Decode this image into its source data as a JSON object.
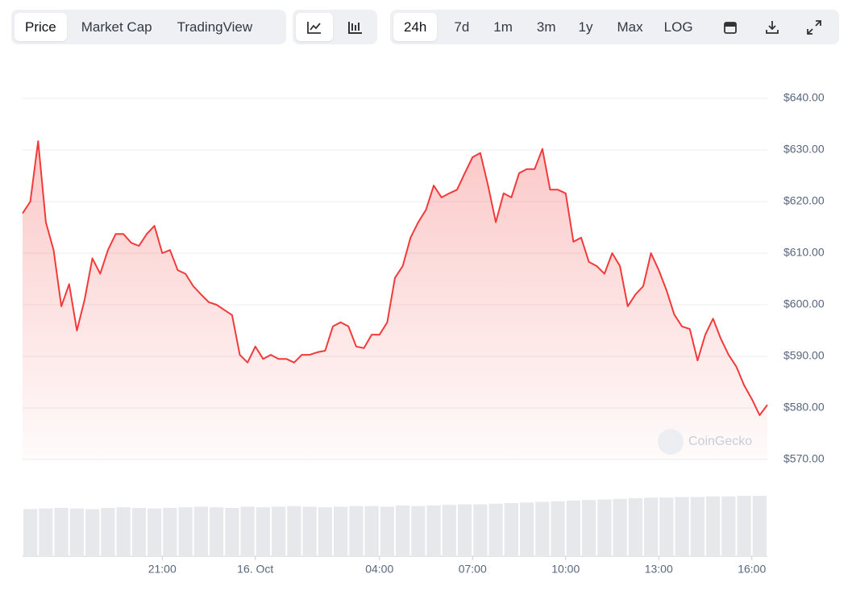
{
  "toolbar": {
    "views": [
      "Price",
      "Market Cap",
      "TradingView"
    ],
    "ranges": [
      "24h",
      "7d",
      "1m",
      "3m",
      "1y",
      "Max",
      "LOG"
    ]
  },
  "watermark": "CoinGecko",
  "chart_data": {
    "type": "line",
    "x": [
      16.5,
      16.75,
      17,
      17.25,
      17.5,
      17.75,
      18,
      18.25,
      18.5,
      18.75,
      19,
      19.25,
      19.5,
      19.75,
      20,
      20.25,
      20.5,
      20.75,
      21,
      21.25,
      21.5,
      21.75,
      22,
      22.25,
      22.5,
      22.75,
      23,
      23.25,
      23.5,
      23.75,
      24,
      24.25,
      24.5,
      24.75,
      25,
      25.25,
      25.5,
      25.75,
      26,
      26.25,
      26.5,
      26.75,
      27,
      27.25,
      27.5,
      27.75,
      28,
      28.25,
      28.5,
      28.75,
      29,
      29.25,
      29.5,
      29.75,
      30,
      30.25,
      30.5,
      30.75,
      31,
      31.25,
      31.5,
      31.75,
      32,
      32.25,
      32.5,
      32.75,
      33,
      33.25,
      33.5,
      33.75,
      34,
      34.25,
      34.5,
      34.75,
      35,
      35.25,
      35.5,
      35.75,
      36,
      36.25,
      36.5,
      36.75,
      37,
      37.25,
      37.5,
      37.75,
      38,
      38.25,
      38.5,
      38.75,
      39,
      39.25,
      39.5,
      39.75,
      40,
      40.25,
      40.5
    ],
    "series": [
      {
        "color": "#f23a3a",
        "values": [
          617.7,
          620,
          631.7,
          616,
          610.6,
          599.7,
          604,
          595,
          601,
          609,
          606,
          610.6,
          613.7,
          613.7,
          612,
          611.4,
          613.7,
          615.3,
          610,
          610.6,
          606.7,
          606,
          603.6,
          602,
          600.5,
          600,
          599,
          598,
          590.3,
          588.8,
          591.9,
          589.5,
          590.3,
          589.5,
          589.5,
          588.8,
          590.3,
          590.3,
          590.8,
          591.1,
          595.8,
          596.6,
          595.8,
          591.9,
          591.6,
          594.2,
          594.2,
          596.6,
          605.2,
          607.5,
          613,
          616,
          618.4,
          623.1,
          620.8,
          621.6,
          622.3,
          625.5,
          628.6,
          629.4,
          623.1,
          616,
          621.6,
          620.8,
          625.5,
          626.3,
          626.3,
          630.2,
          622.3,
          622.3,
          621.6,
          612.2,
          613,
          608.3,
          607.5,
          606,
          610,
          607.5,
          599.7,
          602,
          603.6,
          610,
          606.7,
          602.8,
          598.1,
          595.8,
          595.3,
          589.2,
          594.2,
          597.3,
          593.4,
          590.3,
          588,
          584.4,
          581.7,
          578.6,
          580.6
        ]
      }
    ],
    "volume": {
      "color": "#e6e8ec",
      "ylim": [
        0,
        100
      ],
      "values": [
        78,
        79,
        80,
        79,
        78,
        80,
        81,
        80,
        79,
        80,
        81,
        82,
        81,
        80,
        82,
        81,
        82,
        83,
        82,
        81,
        82,
        83,
        83,
        82,
        84,
        83,
        84,
        85,
        86,
        86,
        87,
        88,
        89,
        90,
        91,
        92,
        93,
        94,
        95,
        96,
        97,
        97,
        98,
        98,
        99,
        99,
        100,
        100
      ]
    },
    "xlim": [
      16.5,
      40.5
    ],
    "xticks": [
      {
        "value": 21,
        "label": "21:00"
      },
      {
        "value": 24,
        "label": "16. Oct"
      },
      {
        "value": 28,
        "label": "04:00"
      },
      {
        "value": 31,
        "label": "07:00"
      },
      {
        "value": 34,
        "label": "10:00"
      },
      {
        "value": 37,
        "label": "13:00"
      },
      {
        "value": 40,
        "label": "16:00"
      }
    ],
    "ylim": [
      570,
      640
    ],
    "yticks": [
      {
        "value": 570,
        "label": "$570.00"
      },
      {
        "value": 580,
        "label": "$580.00"
      },
      {
        "value": 590,
        "label": "$590.00"
      },
      {
        "value": 600,
        "label": "$600.00"
      },
      {
        "value": 610,
        "label": "$610.00"
      },
      {
        "value": 620,
        "label": "$620.00"
      },
      {
        "value": 630,
        "label": "$630.00"
      },
      {
        "value": 640,
        "label": "$640.00"
      }
    ],
    "grid": true
  }
}
